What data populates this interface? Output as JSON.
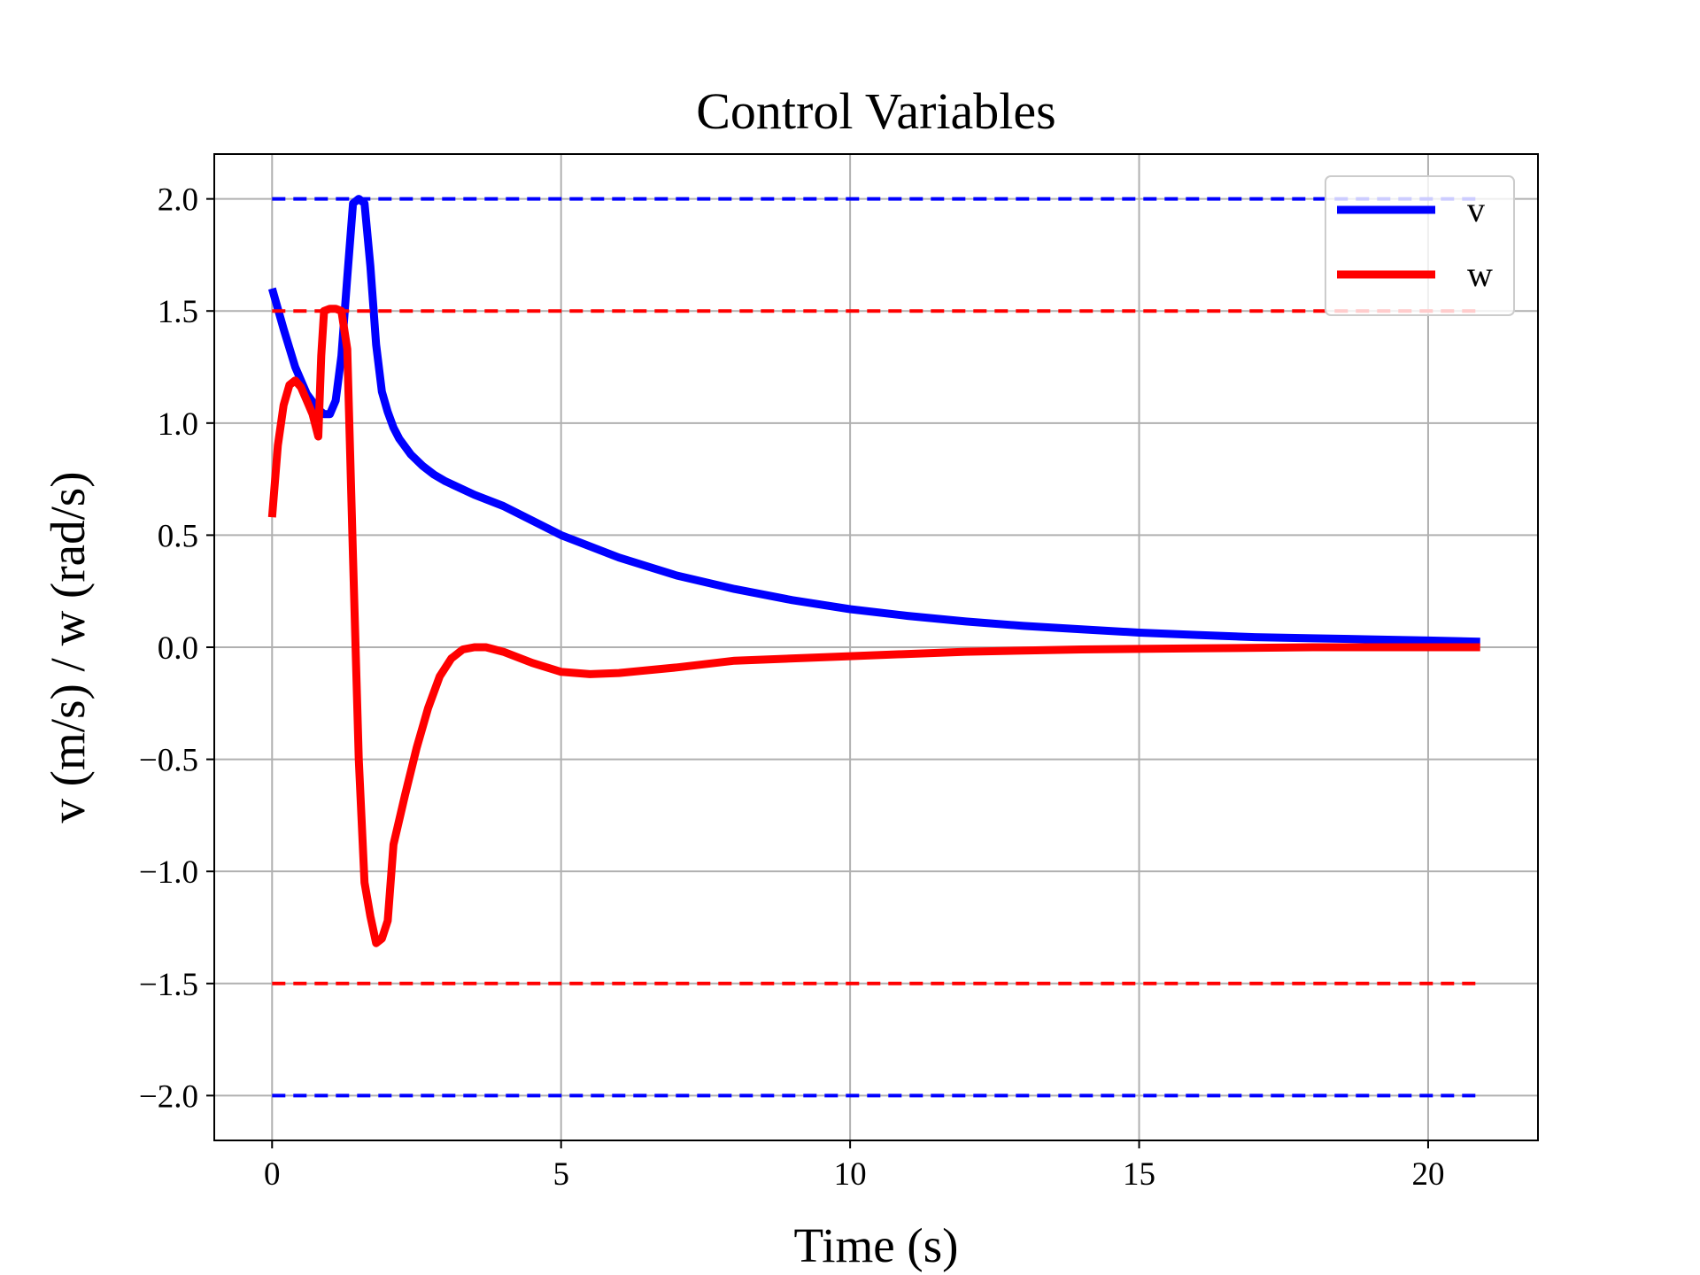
{
  "chart_data": {
    "type": "line",
    "title": "Control Variables",
    "xlabel": "Time (s)",
    "ylabel": "v (m/s) / w (rad/s)",
    "xlim": [
      -1.0,
      21.9
    ],
    "ylim": [
      -2.2,
      2.2
    ],
    "xticks": [
      0,
      5,
      10,
      15,
      20
    ],
    "yticks": [
      -2.0,
      -1.5,
      -1.0,
      -0.5,
      0.0,
      0.5,
      1.0,
      1.5,
      2.0
    ],
    "xtick_labels": [
      "0",
      "5",
      "10",
      "15",
      "20"
    ],
    "ytick_labels": [
      "−2.0",
      "−1.5",
      "−1.0",
      "−0.5",
      "0.0",
      "0.5",
      "1.0",
      "1.5",
      "2.0"
    ],
    "grid": true,
    "legend_position": "top-right",
    "series": [
      {
        "name": "v",
        "color": "#0000ff",
        "style": "solid",
        "x": [
          0,
          0.2,
          0.4,
          0.6,
          0.8,
          0.9,
          1.0,
          1.1,
          1.2,
          1.3,
          1.4,
          1.5,
          1.6,
          1.7,
          1.8,
          1.9,
          2.0,
          2.1,
          2.2,
          2.4,
          2.6,
          2.8,
          3.0,
          3.5,
          4.0,
          5.0,
          6.0,
          7.0,
          8.0,
          9.0,
          10.0,
          11.0,
          12.0,
          13.0,
          14.0,
          15.0,
          16.0,
          17.0,
          18.0,
          19.0,
          20.0,
          20.9
        ],
        "y": [
          1.6,
          1.42,
          1.25,
          1.13,
          1.06,
          1.04,
          1.04,
          1.1,
          1.3,
          1.65,
          1.98,
          2.0,
          1.98,
          1.7,
          1.35,
          1.14,
          1.05,
          0.98,
          0.93,
          0.86,
          0.81,
          0.77,
          0.74,
          0.68,
          0.63,
          0.5,
          0.4,
          0.32,
          0.26,
          0.21,
          0.17,
          0.14,
          0.115,
          0.095,
          0.08,
          0.065,
          0.055,
          0.045,
          0.04,
          0.035,
          0.03,
          0.025
        ]
      },
      {
        "name": "w",
        "color": "#ff0000",
        "style": "solid",
        "x": [
          0,
          0.1,
          0.2,
          0.3,
          0.4,
          0.5,
          0.6,
          0.7,
          0.8,
          0.85,
          0.9,
          1.0,
          1.1,
          1.2,
          1.3,
          1.4,
          1.5,
          1.6,
          1.7,
          1.8,
          1.9,
          2.0,
          2.1,
          2.3,
          2.5,
          2.7,
          2.9,
          3.1,
          3.3,
          3.5,
          3.7,
          4.0,
          4.5,
          5.0,
          5.5,
          6.0,
          7.0,
          8.0,
          10.0,
          12.0,
          14.0,
          16.0,
          18.0,
          20.0,
          20.9
        ],
        "y": [
          0.58,
          0.9,
          1.08,
          1.17,
          1.19,
          1.16,
          1.1,
          1.04,
          0.94,
          1.3,
          1.5,
          1.51,
          1.51,
          1.5,
          1.33,
          0.4,
          -0.5,
          -1.05,
          -1.2,
          -1.32,
          -1.3,
          -1.22,
          -0.88,
          -0.66,
          -0.45,
          -0.27,
          -0.13,
          -0.05,
          -0.01,
          0.0,
          0.0,
          -0.02,
          -0.07,
          -0.11,
          -0.12,
          -0.115,
          -0.09,
          -0.06,
          -0.04,
          -0.02,
          -0.01,
          -0.005,
          0.0,
          0.0,
          0.0
        ]
      },
      {
        "name": "",
        "color": "#0000ff",
        "style": "dashed",
        "x": [
          0,
          20.9
        ],
        "y": [
          2.0,
          2.0
        ]
      },
      {
        "name": "",
        "color": "#0000ff",
        "style": "dashed",
        "x": [
          0,
          20.9
        ],
        "y": [
          -2.0,
          -2.0
        ]
      },
      {
        "name": "",
        "color": "#ff0000",
        "style": "dashed",
        "x": [
          0,
          20.9
        ],
        "y": [
          1.5,
          1.5
        ]
      },
      {
        "name": "",
        "color": "#ff0000",
        "style": "dashed",
        "x": [
          0,
          20.9
        ],
        "y": [
          -1.5,
          -1.5
        ]
      }
    ]
  }
}
